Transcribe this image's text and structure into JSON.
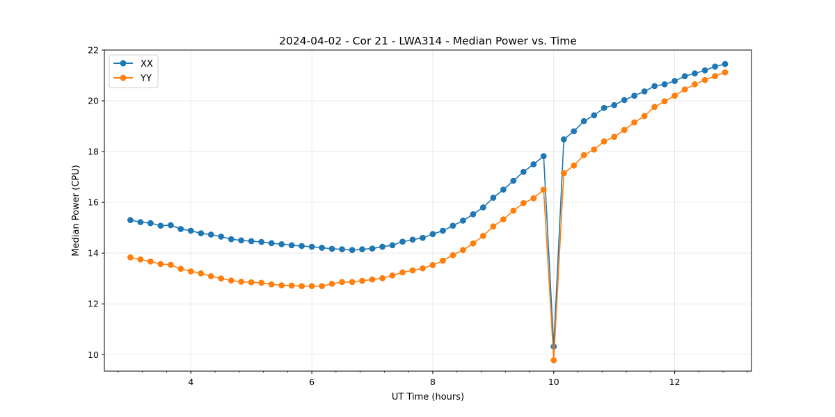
{
  "chart_data": {
    "type": "line",
    "title": "2024-04-02 - Cor 21 - LWA314 - Median Power vs. Time",
    "xlabel": "UT Time (hours)",
    "ylabel": "Median Power (CPU)",
    "xlim": [
      2.57,
      13.27
    ],
    "ylim": [
      9.35,
      22.0
    ],
    "xticks": [
      4,
      6,
      8,
      10,
      12
    ],
    "yticks": [
      10,
      12,
      14,
      16,
      18,
      20,
      22
    ],
    "xminor_step": 0.4,
    "grid": true,
    "legend_position": "upper-left",
    "x": [
      3.0,
      3.167,
      3.333,
      3.5,
      3.667,
      3.833,
      4.0,
      4.167,
      4.333,
      4.5,
      4.667,
      4.833,
      5.0,
      5.167,
      5.333,
      5.5,
      5.667,
      5.833,
      6.0,
      6.167,
      6.333,
      6.5,
      6.667,
      6.833,
      7.0,
      7.167,
      7.333,
      7.5,
      7.667,
      7.833,
      8.0,
      8.167,
      8.333,
      8.5,
      8.667,
      8.833,
      9.0,
      9.167,
      9.333,
      9.5,
      9.667,
      9.833,
      10.0,
      10.167,
      10.333,
      10.5,
      10.667,
      10.833,
      11.0,
      11.167,
      11.333,
      11.5,
      11.667,
      11.833,
      12.0,
      12.167,
      12.333,
      12.5,
      12.667,
      12.833
    ],
    "series": [
      {
        "name": "XX",
        "color": "#1f77b4",
        "values": [
          15.3,
          15.22,
          15.18,
          15.08,
          15.1,
          14.95,
          14.88,
          14.78,
          14.73,
          14.65,
          14.55,
          14.5,
          14.47,
          14.44,
          14.39,
          14.35,
          14.31,
          14.28,
          14.25,
          14.21,
          14.17,
          14.15,
          14.12,
          14.15,
          14.18,
          14.25,
          14.31,
          14.45,
          14.53,
          14.6,
          14.75,
          14.88,
          15.08,
          15.28,
          15.53,
          15.8,
          16.18,
          16.5,
          16.85,
          17.2,
          17.5,
          17.82,
          10.32,
          18.48,
          18.8,
          19.2,
          19.43,
          19.72,
          19.83,
          20.03,
          20.2,
          20.37,
          20.58,
          20.65,
          20.78,
          20.97,
          21.08,
          21.2,
          21.35,
          21.45
        ]
      },
      {
        "name": "YY",
        "color": "#ff7f0e",
        "values": [
          13.83,
          13.75,
          13.67,
          13.57,
          13.54,
          13.38,
          13.28,
          13.2,
          13.09,
          13.0,
          12.92,
          12.87,
          12.85,
          12.83,
          12.77,
          12.73,
          12.72,
          12.7,
          12.7,
          12.7,
          12.79,
          12.86,
          12.86,
          12.91,
          12.96,
          13.01,
          13.12,
          13.24,
          13.32,
          13.4,
          13.53,
          13.7,
          13.92,
          14.12,
          14.38,
          14.68,
          15.05,
          15.33,
          15.67,
          15.97,
          16.16,
          16.5,
          9.78,
          17.15,
          17.45,
          17.86,
          18.08,
          18.4,
          18.58,
          18.85,
          19.15,
          19.4,
          19.76,
          19.98,
          20.2,
          20.45,
          20.65,
          20.82,
          20.97,
          21.12
        ]
      }
    ]
  }
}
